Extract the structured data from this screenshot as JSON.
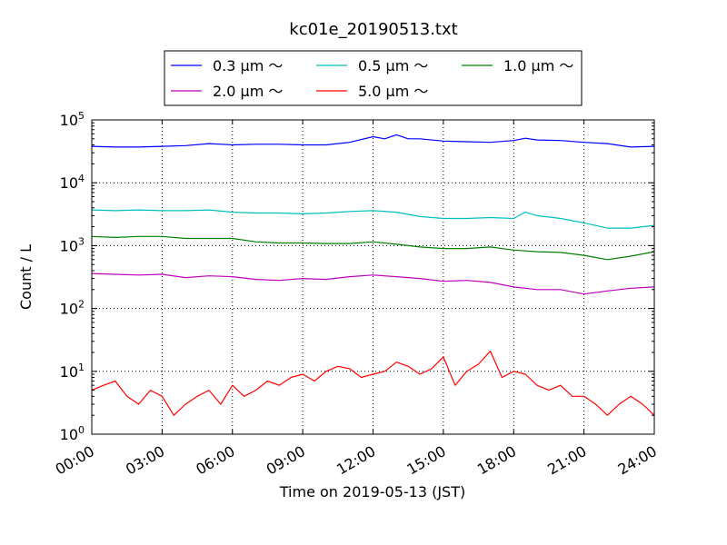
{
  "chart_data": {
    "type": "line",
    "title": "kc01e_20190513.txt",
    "xlabel": "Time on 2019-05-13 (JST)",
    "ylabel": "Count / L",
    "yscale": "log",
    "ylim": [
      1,
      100000
    ],
    "xlim": [
      0,
      24
    ],
    "grid": true,
    "legend_position": "top",
    "x_ticks": [
      {
        "value": 0,
        "label": "00:00"
      },
      {
        "value": 3,
        "label": "03:00"
      },
      {
        "value": 6,
        "label": "06:00"
      },
      {
        "value": 9,
        "label": "09:00"
      },
      {
        "value": 12,
        "label": "12:00"
      },
      {
        "value": 15,
        "label": "15:00"
      },
      {
        "value": 18,
        "label": "18:00"
      },
      {
        "value": 21,
        "label": "21:00"
      },
      {
        "value": 24,
        "label": "24:00"
      }
    ],
    "y_ticks": [
      {
        "value": 1,
        "base": "10",
        "exp": "0"
      },
      {
        "value": 10,
        "base": "10",
        "exp": "1"
      },
      {
        "value": 100,
        "base": "10",
        "exp": "2"
      },
      {
        "value": 1000,
        "base": "10",
        "exp": "3"
      },
      {
        "value": 10000,
        "base": "10",
        "exp": "4"
      },
      {
        "value": 100000,
        "base": "10",
        "exp": "5"
      }
    ],
    "series": [
      {
        "name": "0.3 μm ～",
        "color": "#0000ff",
        "x": [
          0,
          1,
          2,
          3,
          4,
          5,
          6,
          7,
          8,
          9,
          10,
          11,
          12,
          12.5,
          13,
          13.5,
          14,
          15,
          16,
          17,
          18,
          18.5,
          19,
          20,
          21,
          22,
          23,
          24
        ],
        "y": [
          38000,
          37000,
          37000,
          38000,
          39000,
          42000,
          40000,
          41000,
          41000,
          40000,
          40000,
          44000,
          54000,
          50000,
          58000,
          50000,
          50000,
          46000,
          45000,
          44000,
          47000,
          51000,
          48000,
          47000,
          44000,
          42000,
          37000,
          38000
        ]
      },
      {
        "name": "0.5 μm ～",
        "color": "#00bfbf",
        "x": [
          0,
          1,
          2,
          3,
          4,
          5,
          6,
          7,
          8,
          9,
          10,
          11,
          12,
          13,
          14,
          15,
          16,
          17,
          18,
          18.5,
          19,
          20,
          21,
          22,
          23,
          24
        ],
        "y": [
          3700,
          3600,
          3700,
          3600,
          3600,
          3700,
          3400,
          3300,
          3300,
          3200,
          3300,
          3500,
          3600,
          3400,
          2900,
          2700,
          2700,
          2800,
          2700,
          3400,
          3000,
          2700,
          2300,
          1900,
          1900,
          2100
        ]
      },
      {
        "name": "1.0 μm ～",
        "color": "#008000",
        "x": [
          0,
          1,
          2,
          3,
          4,
          5,
          6,
          7,
          8,
          9,
          10,
          11,
          12,
          13,
          14,
          15,
          16,
          17,
          18,
          19,
          20,
          21,
          22,
          23,
          24
        ],
        "y": [
          1400,
          1350,
          1400,
          1400,
          1300,
          1300,
          1300,
          1150,
          1100,
          1100,
          1080,
          1080,
          1150,
          1050,
          950,
          900,
          900,
          950,
          850,
          800,
          780,
          700,
          600,
          680,
          800
        ]
      },
      {
        "name": "2.0 μm ～",
        "color": "#bf00bf",
        "x": [
          0,
          1,
          2,
          3,
          4,
          5,
          6,
          7,
          8,
          9,
          10,
          11,
          12,
          13,
          14,
          15,
          16,
          17,
          18,
          19,
          20,
          21,
          22,
          23,
          24
        ],
        "y": [
          360,
          350,
          340,
          350,
          310,
          330,
          320,
          290,
          280,
          300,
          290,
          320,
          340,
          320,
          300,
          270,
          280,
          260,
          220,
          200,
          200,
          170,
          190,
          210,
          220
        ]
      },
      {
        "name": "5.0 μm ～",
        "color": "#ff0000",
        "x": [
          0,
          0.5,
          1,
          1.5,
          2,
          2.5,
          3,
          3.5,
          4,
          4.5,
          5,
          5.5,
          6,
          6.5,
          7,
          7.5,
          8,
          8.5,
          9,
          9.5,
          10,
          10.5,
          11,
          11.5,
          12,
          12.5,
          13,
          13.5,
          14,
          14.5,
          15,
          15.5,
          16,
          16.5,
          17,
          17.5,
          18,
          18.5,
          19,
          19.5,
          20,
          20.5,
          21,
          21.5,
          22,
          22.5,
          23,
          23.5,
          24
        ],
        "y": [
          5,
          6,
          7,
          4,
          3,
          5,
          4,
          2,
          3,
          4,
          5,
          3,
          6,
          4,
          5,
          7,
          6,
          8,
          9,
          7,
          10,
          12,
          11,
          8,
          9,
          10,
          14,
          12,
          9,
          11,
          17,
          6,
          10,
          13,
          21,
          8,
          10,
          9,
          6,
          5,
          6,
          4,
          4,
          3,
          2,
          3,
          4,
          3,
          2
        ]
      }
    ]
  }
}
